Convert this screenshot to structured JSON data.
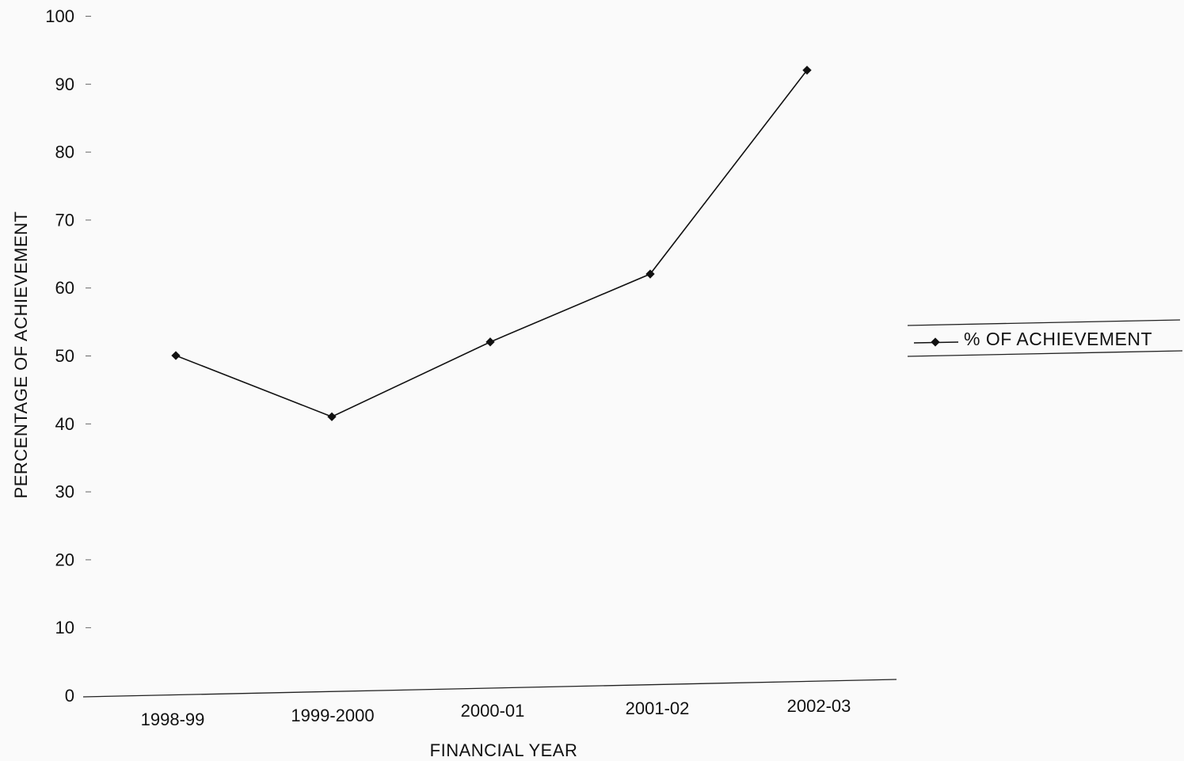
{
  "chart_data": {
    "type": "line",
    "categories": [
      "1998-99",
      "1999-2000",
      "2000-01",
      "2001-02",
      "2002-03"
    ],
    "series": [
      {
        "name": "% OF ACHIEVEMENT",
        "values": [
          50,
          41,
          52,
          62,
          92
        ],
        "color": "#111111",
        "marker": "diamond"
      }
    ],
    "title": "",
    "xlabel": "FINANCIAL YEAR",
    "ylabel": "PERCENTAGE OF ACHIEVEMENT",
    "ylim": [
      0,
      100
    ],
    "yticks": [
      0,
      10,
      20,
      30,
      40,
      50,
      60,
      70,
      80,
      90,
      100
    ],
    "grid": false,
    "legend_position": "right"
  }
}
